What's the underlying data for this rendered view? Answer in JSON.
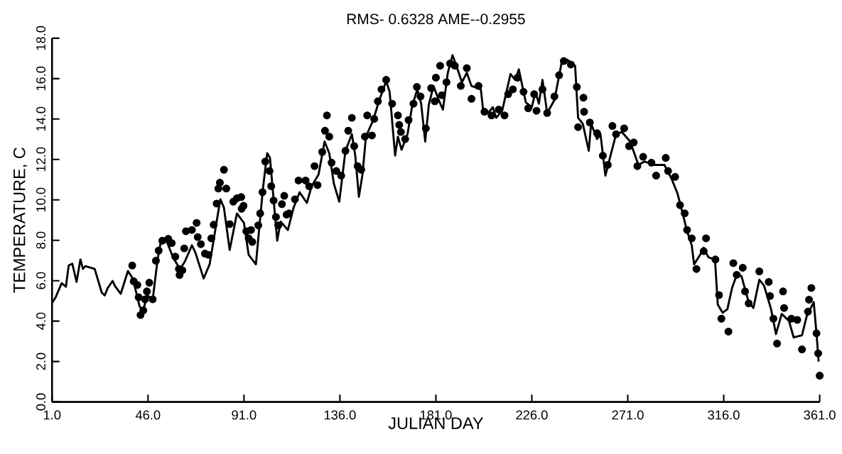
{
  "chart_data": {
    "type": "line",
    "title": "RMS- 0.6328   AME--0.2955",
    "xlabel": "JULIAN DAY",
    "ylabel": "TEMPERATURE, C",
    "xlim": [
      1,
      361
    ],
    "ylim": [
      0,
      18
    ],
    "xticks": [
      {
        "value": 1,
        "label": "1.0"
      },
      {
        "value": 46,
        "label": "46.0"
      },
      {
        "value": 91,
        "label": "91.0"
      },
      {
        "value": 136,
        "label": "136.0"
      },
      {
        "value": 181,
        "label": "181.0"
      },
      {
        "value": 226,
        "label": "226.0"
      },
      {
        "value": 271,
        "label": "271.0"
      },
      {
        "value": 316,
        "label": "316.0"
      },
      {
        "value": 361,
        "label": "361.0"
      }
    ],
    "yticks": [
      {
        "value": 0,
        "label": "0.0"
      },
      {
        "value": 2,
        "label": "2.0"
      },
      {
        "value": 4,
        "label": "4.0"
      },
      {
        "value": 6,
        "label": "6.0"
      },
      {
        "value": 8,
        "label": "8.0"
      },
      {
        "value": 10,
        "label": "10.0"
      },
      {
        "value": 12,
        "label": "12.0"
      },
      {
        "value": 14,
        "label": "14.0"
      },
      {
        "value": 16,
        "label": "16.0"
      },
      {
        "value": 18,
        "label": "18.0"
      }
    ],
    "series": [
      {
        "color": "#000000",
        "marker": "none",
        "x": [
          1,
          2.7,
          5.5,
          7.5,
          8.8,
          10.5,
          12.5,
          14.3,
          15.5,
          16.6,
          21.0,
          24.3,
          25.7,
          27.1,
          29.4,
          30.5,
          33.2,
          36.6,
          38.8,
          40.5,
          42.1,
          43.8,
          45.5,
          48.2,
          50.5,
          52.1,
          54.9,
          57.7,
          61.0,
          63.2,
          66.6,
          68.2,
          72.1,
          74.9,
          77.1,
          79.9,
          81.6,
          84.3,
          87.7,
          91.0,
          93.2,
          96.6,
          99.9,
          101.9,
          103.2,
          106.6,
          108.2,
          111.6,
          114.3,
          117.1,
          120.5,
          122.7,
          126.0,
          128.8,
          131.0,
          133.2,
          135.7,
          138.6,
          141.6,
          143.2,
          144.9,
          146.6,
          148.2,
          151.6,
          154.3,
          157.7,
          159.3,
          161.9,
          163.2,
          164.9,
          167.7,
          169.9,
          172.3,
          174.1,
          176.0,
          177.7,
          179.9,
          182.1,
          184.3,
          186.6,
          188.8,
          191.0,
          193.2,
          195.5,
          197.7,
          202.1,
          203.2,
          205.5,
          207.7,
          209.3,
          212.1,
          216.0,
          218.2,
          219.9,
          223.2,
          226.0,
          227.7,
          229.3,
          231.0,
          233.2,
          236.6,
          239.9,
          241.0,
          242.7,
          246.3,
          247.7,
          249.9,
          252.7,
          253.8,
          256.6,
          258.2,
          260.5,
          263.2,
          265.5,
          268.2,
          272.1,
          276.0,
          278.8,
          283.2,
          288.2,
          291.6,
          294.3,
          296.6,
          298.8,
          301.0,
          302.1,
          304.9,
          306.6,
          308.8,
          311.9,
          313.2,
          315.5,
          317.7,
          319.9,
          322.1,
          324.3,
          327.7,
          329.9,
          332.7,
          334.9,
          338.2,
          340.5,
          343.2,
          346.6,
          348.8,
          352.7,
          354.9,
          358.2,
          359.5,
          360.5
        ],
        "values": [
          4.9,
          5.18,
          5.88,
          5.7,
          6.75,
          6.84,
          5.94,
          7.05,
          6.58,
          6.72,
          6.58,
          5.41,
          5.27,
          5.64,
          5.99,
          5.74,
          5.35,
          6.48,
          6.11,
          5.41,
          4.71,
          4.53,
          5.29,
          5.06,
          7.05,
          7.98,
          7.92,
          7.16,
          6.58,
          6.93,
          7.75,
          7.4,
          6.11,
          6.81,
          8.22,
          10.03,
          9.62,
          7.52,
          9.33,
          8.86,
          7.28,
          6.81,
          10.56,
          12.31,
          12.08,
          7.98,
          8.92,
          8.51,
          9.62,
          10.38,
          9.85,
          10.67,
          11.26,
          12.89,
          12.31,
          10.79,
          9.91,
          12.43,
          13.25,
          12.19,
          10.15,
          11.26,
          13.13,
          13.95,
          14.88,
          15.88,
          15.35,
          12.19,
          13.13,
          12.48,
          13.25,
          14.65,
          15.47,
          14.76,
          12.89,
          14.71,
          15.64,
          15.0,
          14.47,
          16.29,
          17.16,
          16.52,
          15.82,
          16.29,
          15.64,
          15.47,
          14.41,
          14.3,
          14.59,
          14.06,
          14.41,
          16.23,
          15.94,
          16.46,
          14.82,
          14.59,
          15.35,
          14.76,
          15.94,
          14.3,
          14.94,
          16.75,
          16.75,
          16.93,
          16.64,
          14.06,
          13.77,
          12.43,
          13.77,
          13.01,
          13.25,
          11.2,
          12.31,
          13.25,
          13.36,
          12.89,
          11.73,
          11.9,
          11.73,
          11.73,
          11.03,
          10.32,
          9.39,
          8.45,
          7.75,
          6.81,
          7.28,
          7.63,
          7.16,
          7.05,
          4.82,
          4.41,
          4.59,
          5.64,
          6.29,
          6.23,
          4.94,
          4.65,
          6.05,
          5.76,
          4.59,
          3.36,
          4.36,
          4.01,
          3.19,
          3.3,
          4.24,
          4.94,
          3.4,
          2.0
        ]
      },
      {
        "type": "scatter",
        "color": "#000000",
        "marker": "circle",
        "x": [
          38.6,
          39.3,
          41.0,
          41.6,
          42.5,
          43.8,
          44.6,
          45.5,
          46.6,
          48.2,
          49.7,
          51.0,
          52.7,
          55.5,
          57.1,
          58.8,
          60.5,
          60.8,
          62.1,
          63.0,
          63.8,
          66.6,
          68.8,
          69.3,
          70.8,
          72.7,
          74.3,
          75.7,
          76.8,
          78.2,
          79.0,
          79.7,
          81.6,
          82.7,
          84.3,
          86.0,
          87.7,
          89.7,
          89.9,
          90.8,
          92.1,
          93.2,
          94.3,
          94.9,
          97.7,
          98.6,
          99.7,
          101.0,
          103.0,
          103.8,
          104.9,
          106.0,
          107.1,
          108.8,
          109.9,
          111.0,
          112.1,
          114.9,
          116.6,
          119.9,
          121.6,
          124.1,
          125.5,
          127.7,
          129.0,
          129.9,
          131.0,
          132.1,
          134.3,
          136.6,
          138.6,
          139.9,
          141.6,
          142.7,
          144.3,
          146.0,
          147.7,
          148.8,
          151.0,
          152.1,
          153.8,
          155.5,
          157.7,
          160.5,
          163.2,
          163.8,
          164.6,
          166.6,
          168.2,
          170.5,
          172.1,
          173.8,
          176.3,
          178.8,
          180.5,
          181.0,
          183.0,
          183.8,
          186.0,
          187.7,
          189.9,
          192.7,
          195.5,
          197.7,
          201.0,
          203.8,
          207.1,
          210.5,
          213.2,
          214.9,
          217.1,
          219.3,
          222.1,
          224.3,
          227.1,
          228.2,
          231.0,
          233.2,
          236.6,
          238.8,
          241.0,
          244.3,
          247.1,
          250.2,
          250.5,
          247.7,
          253.2,
          256.6,
          259.3,
          261.6,
          263.8,
          265.5,
          269.3,
          271.6,
          273.8,
          275.5,
          278.2,
          282.1,
          284.3,
          288.8,
          289.9,
          293.2,
          295.5,
          297.7,
          298.8,
          301.0,
          303.2,
          306.6,
          307.7,
          312.1,
          313.8,
          314.9,
          318.2,
          320.5,
          322.1,
          324.9,
          326.0,
          327.7,
          332.7,
          337.1,
          337.7,
          339.3,
          341.0,
          343.8,
          344.3,
          347.7,
          350.5,
          352.7,
          355.5,
          356.0,
          357.1,
          359.5,
          360.3,
          361.0
        ],
        "values": [
          6.75,
          5.97,
          5.79,
          5.18,
          4.3,
          4.53,
          5.08,
          5.47,
          5.9,
          5.08,
          6.99,
          7.49,
          7.98,
          8.07,
          7.86,
          7.19,
          6.58,
          6.28,
          6.52,
          7.6,
          8.45,
          8.51,
          8.86,
          8.16,
          7.81,
          7.34,
          7.28,
          8.1,
          8.77,
          9.82,
          10.56,
          10.85,
          11.49,
          10.56,
          8.8,
          9.91,
          10.08,
          10.14,
          9.56,
          9.71,
          8.45,
          8.1,
          8.51,
          7.92,
          8.74,
          9.33,
          10.38,
          11.9,
          11.43,
          10.68,
          9.97,
          9.15,
          8.74,
          9.79,
          10.2,
          9.27,
          9.33,
          10.03,
          10.96,
          10.96,
          10.67,
          11.67,
          10.73,
          12.37,
          13.42,
          14.18,
          13.13,
          11.84,
          11.43,
          11.2,
          12.43,
          13.42,
          14.06,
          12.66,
          11.67,
          11.49,
          13.13,
          14.18,
          13.19,
          14.01,
          14.88,
          15.47,
          15.94,
          14.76,
          14.18,
          13.71,
          13.36,
          13.01,
          13.95,
          14.76,
          15.59,
          15.12,
          13.54,
          15.53,
          14.88,
          16.05,
          16.64,
          15.18,
          15.82,
          16.75,
          16.64,
          15.64,
          16.52,
          15.0,
          15.64,
          14.36,
          14.18,
          14.47,
          14.18,
          15.23,
          15.47,
          16.05,
          15.35,
          14.53,
          15.23,
          14.41,
          15.47,
          14.3,
          15.12,
          16.17,
          16.87,
          16.7,
          15.59,
          15.06,
          14.36,
          13.6,
          13.83,
          13.3,
          12.19,
          11.73,
          13.66,
          13.25,
          13.54,
          12.66,
          12.84,
          11.67,
          12.13,
          11.84,
          11.2,
          12.08,
          11.43,
          11.14,
          9.74,
          9.33,
          8.51,
          8.1,
          6.58,
          7.46,
          8.1,
          7.05,
          5.29,
          4.12,
          3.48,
          6.87,
          6.29,
          6.64,
          5.47,
          4.88,
          6.46,
          5.94,
          5.24,
          4.12,
          2.89,
          5.47,
          4.65,
          4.12,
          4.06,
          2.6,
          4.47,
          5.06,
          5.64,
          3.4,
          2.4,
          1.3
        ]
      }
    ]
  }
}
